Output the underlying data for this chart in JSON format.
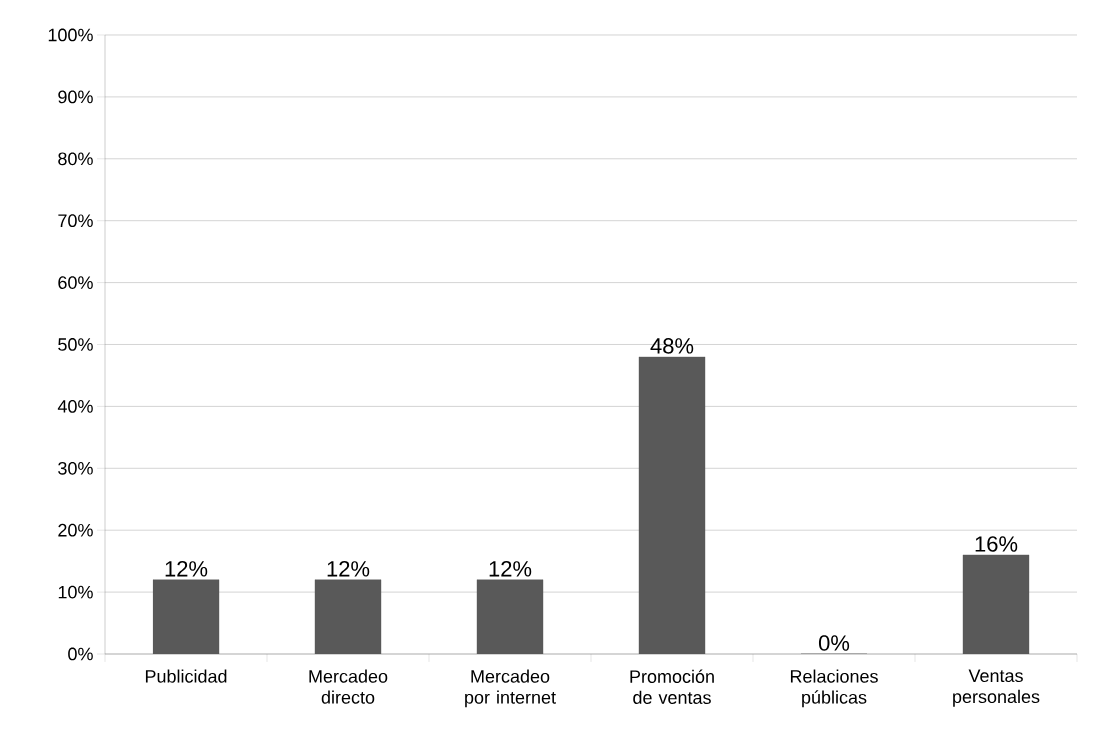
{
  "chart_data": {
    "type": "bar",
    "categories": [
      "Publicidad",
      "Mercadeo directo",
      "Mercadeo por internet",
      "Promoción de ventas",
      "Relaciones públicas",
      "Ventas personales"
    ],
    "values": [
      12,
      12,
      12,
      48,
      0,
      16
    ],
    "value_labels": [
      "12%",
      "12%",
      "12%",
      "48%",
      "0%",
      "16%"
    ],
    "color": "#595959",
    "ylim": [
      0,
      100
    ],
    "yticks": [
      {
        "value": 0,
        "label": "0%"
      },
      {
        "value": 10,
        "label": "10%"
      },
      {
        "value": 20,
        "label": "20%"
      },
      {
        "value": 30,
        "label": "30%"
      },
      {
        "value": 40,
        "label": "40%"
      },
      {
        "value": 50,
        "label": "50%"
      },
      {
        "value": 60,
        "label": "60%"
      },
      {
        "value": 70,
        "label": "70%"
      },
      {
        "value": 80,
        "label": "80%"
      },
      {
        "value": 90,
        "label": "90%"
      },
      {
        "value": 100,
        "label": "100%"
      }
    ],
    "grid": "y"
  }
}
